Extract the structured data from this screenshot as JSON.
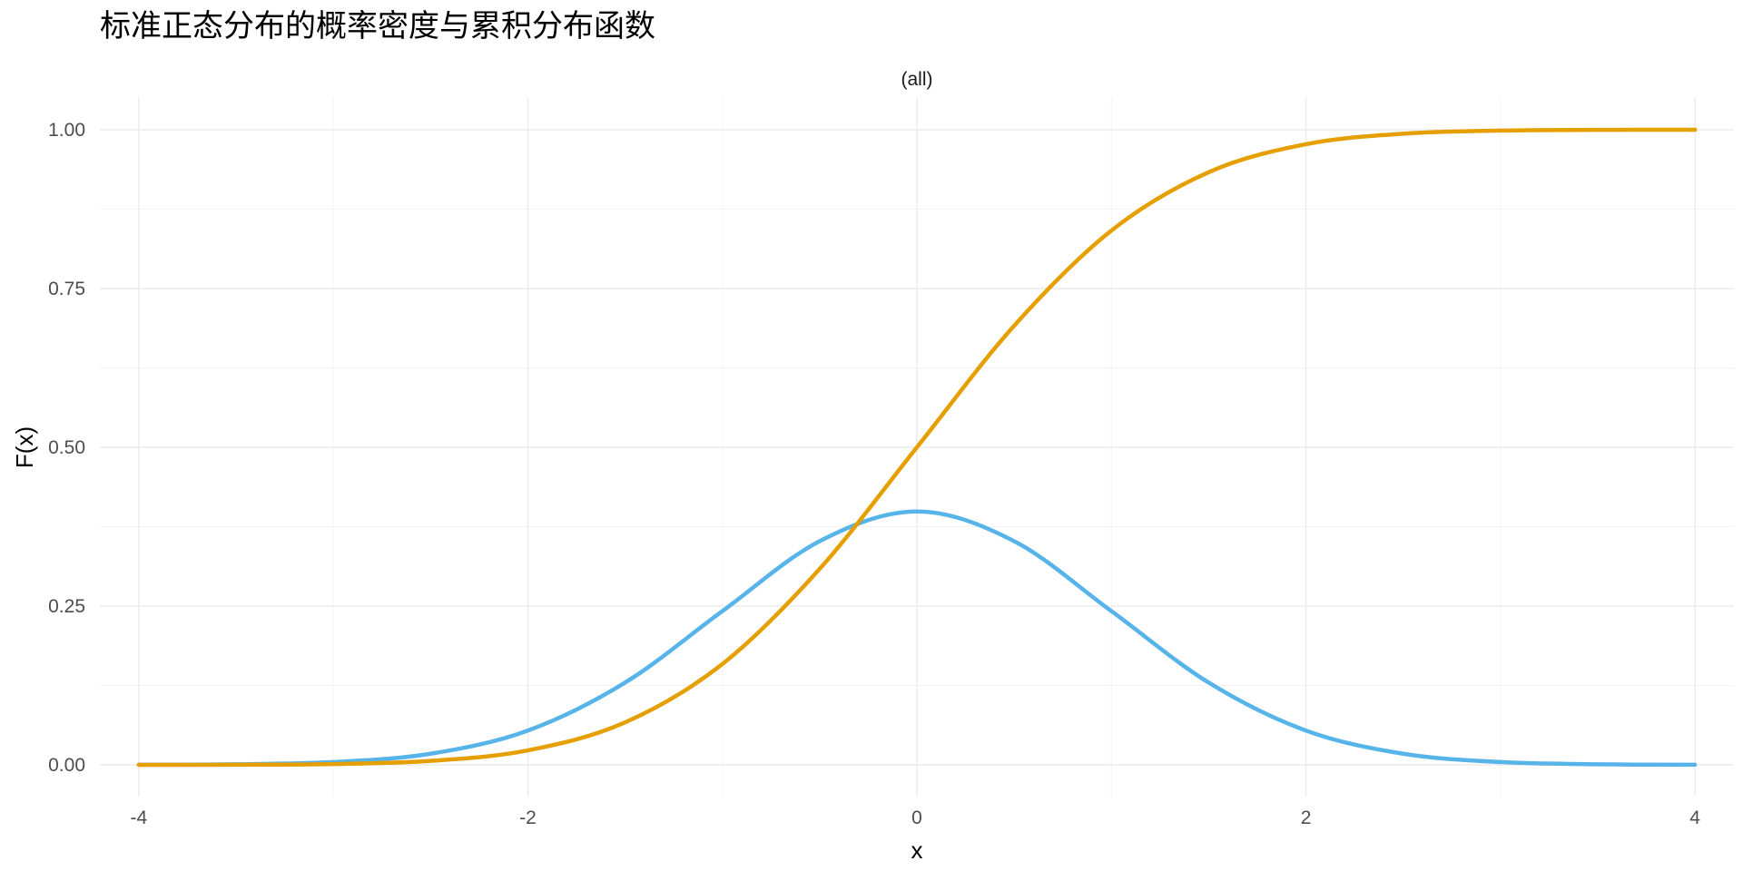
{
  "chart_data": {
    "type": "line",
    "title": "标准正态分布的概率密度与累积分布函数",
    "facet_label": "(all)",
    "xlabel": "x",
    "ylabel": "F(x)",
    "xlim": [
      -4.2,
      4.2
    ],
    "ylim": [
      -0.05,
      1.05
    ],
    "x_ticks": [
      -4,
      -2,
      0,
      2,
      4
    ],
    "x_tick_labels": [
      "-4",
      "-2",
      "0",
      "2",
      "4"
    ],
    "y_ticks": [
      0,
      0.25,
      0.5,
      0.75,
      1.0
    ],
    "y_tick_labels": [
      "0.00",
      "0.25",
      "0.50",
      "0.75",
      "1.00"
    ],
    "grid": true,
    "legend": "none",
    "x": [
      -4.0,
      -3.5,
      -3.0,
      -2.5,
      -2.0,
      -1.5,
      -1.0,
      -0.5,
      0.0,
      0.5,
      1.0,
      1.5,
      2.0,
      2.5,
      3.0,
      3.5,
      4.0
    ],
    "series": [
      {
        "color": "#56B4E9",
        "values": [
          0.0001,
          0.0009,
          0.0044,
          0.0175,
          0.054,
          0.1295,
          0.242,
          0.3521,
          0.3989,
          0.3521,
          0.242,
          0.1295,
          0.054,
          0.0175,
          0.0044,
          0.0009,
          0.0001
        ]
      },
      {
        "color": "#E69F00",
        "values": [
          0.0,
          0.0002,
          0.0013,
          0.0062,
          0.0228,
          0.0668,
          0.1587,
          0.3085,
          0.5,
          0.6915,
          0.8413,
          0.9332,
          0.9772,
          0.9938,
          0.9987,
          0.9998,
          1.0
        ]
      }
    ]
  }
}
